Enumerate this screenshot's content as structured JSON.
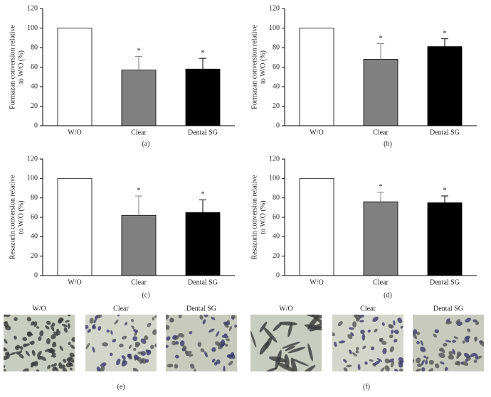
{
  "chart_data": [
    {
      "type": "bar",
      "panel": "(a)",
      "ylabel": [
        "Formazan conversion relative",
        "to W/O (%)"
      ],
      "categories": [
        "W/O",
        "Clear",
        "Dental SG"
      ],
      "values": [
        100,
        57,
        58
      ],
      "errors": [
        null,
        14,
        11
      ],
      "colors": [
        "#ffffff",
        "#808080",
        "#000000"
      ],
      "annotations": [
        {
          "text": "*",
          "x": "Clear",
          "color": "#aaaaaa"
        },
        {
          "text": "*",
          "x": "Dental SG",
          "color": "#000000"
        }
      ],
      "ylim": [
        0,
        120
      ],
      "yticks": [
        0,
        20,
        40,
        60,
        80,
        100,
        120
      ]
    },
    {
      "type": "bar",
      "panel": "(b)",
      "ylabel": [
        "Formazan conversion relative",
        "to W/O (%)"
      ],
      "categories": [
        "W/O",
        "Clear",
        "Dental SG"
      ],
      "values": [
        100,
        68,
        81
      ],
      "errors": [
        null,
        16,
        8
      ],
      "colors": [
        "#ffffff",
        "#808080",
        "#000000"
      ],
      "annotations": [
        {
          "text": "*",
          "x": "Clear",
          "color": "#aaaaaa"
        },
        {
          "text": "*",
          "x": "Dental SG",
          "color": "#000000"
        }
      ],
      "ylim": [
        0,
        120
      ],
      "yticks": [
        0,
        20,
        40,
        60,
        80,
        100,
        120
      ]
    },
    {
      "type": "bar",
      "panel": "(c)",
      "ylabel": [
        "Resazurin conversion relative",
        "to W/O (%)"
      ],
      "categories": [
        "W/O",
        "Clear",
        "Dental SG"
      ],
      "values": [
        100,
        62,
        65
      ],
      "errors": [
        null,
        20,
        13
      ],
      "colors": [
        "#ffffff",
        "#808080",
        "#000000"
      ],
      "annotations": [
        {
          "text": "*",
          "x": "Clear",
          "color": "#aaaaaa"
        },
        {
          "text": "*",
          "x": "Dental SG",
          "color": "#000000"
        }
      ],
      "ylim": [
        0,
        120
      ],
      "yticks": [
        0,
        20,
        40,
        60,
        80,
        100,
        120
      ]
    },
    {
      "type": "bar",
      "panel": "(d)",
      "ylabel": [
        "Resazurin conversion relative",
        "to W/O (%)"
      ],
      "categories": [
        "W/O",
        "Clear",
        "Dental SG"
      ],
      "values": [
        100,
        76,
        75
      ],
      "errors": [
        null,
        10,
        7
      ],
      "colors": [
        "#ffffff",
        "#808080",
        "#000000"
      ],
      "annotations": [
        {
          "text": "*",
          "x": "Clear",
          "color": "#aaaaaa"
        },
        {
          "text": "*",
          "x": "Dental SG",
          "color": "#000000"
        }
      ],
      "ylim": [
        0,
        120
      ],
      "yticks": [
        0,
        20,
        40,
        60,
        80,
        100,
        120
      ]
    }
  ],
  "image_panels": [
    {
      "panel": "(e)",
      "titles": [
        "W/O",
        "Clear",
        "Dental SG"
      ]
    },
    {
      "panel": "(f)",
      "titles": [
        "W/O",
        "Clear",
        "Dental SG"
      ]
    }
  ]
}
